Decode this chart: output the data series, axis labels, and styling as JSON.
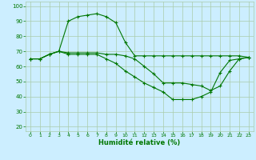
{
  "xlabel": "Humidité relative (%)",
  "bg_color": "#cceeff",
  "grid_color": "#aaccaa",
  "line_color": "#007700",
  "xlim": [
    -0.5,
    23.5
  ],
  "ylim": [
    17,
    103
  ],
  "xticks": [
    0,
    1,
    2,
    3,
    4,
    5,
    6,
    7,
    8,
    9,
    10,
    11,
    12,
    13,
    14,
    15,
    16,
    17,
    18,
    19,
    20,
    21,
    22,
    23
  ],
  "yticks": [
    20,
    30,
    40,
    50,
    60,
    70,
    80,
    90,
    100
  ],
  "series": [
    [
      65,
      65,
      68,
      70,
      90,
      93,
      94,
      95,
      93,
      89,
      76,
      67,
      67,
      67,
      67,
      67,
      67,
      67,
      67,
      67,
      67,
      67,
      67,
      66
    ],
    [
      65,
      65,
      68,
      70,
      69,
      69,
      69,
      69,
      68,
      68,
      67,
      65,
      60,
      55,
      49,
      49,
      49,
      48,
      47,
      44,
      47,
      57,
      65,
      66
    ],
    [
      65,
      65,
      68,
      70,
      68,
      68,
      68,
      68,
      65,
      62,
      57,
      53,
      49,
      46,
      43,
      38,
      38,
      38,
      40,
      43,
      56,
      64,
      65,
      66
    ]
  ]
}
